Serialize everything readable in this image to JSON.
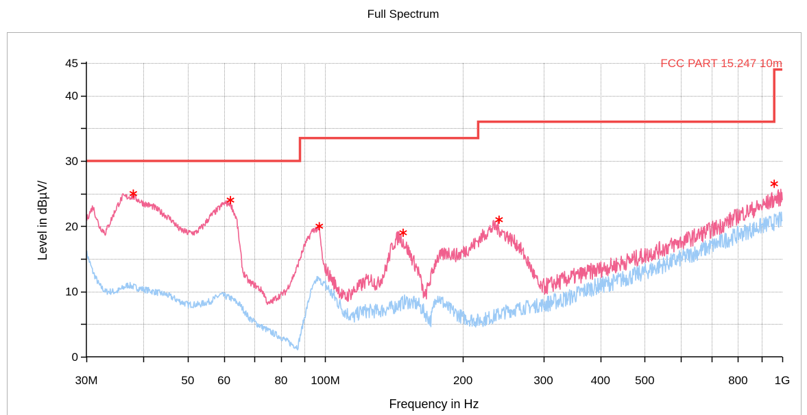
{
  "chart_data": {
    "type": "line",
    "title": "Full Spectrum",
    "xlabel": "Frequency in Hz",
    "ylabel": "Level in dBµV/",
    "x_scale": "log",
    "xlim": [
      30000000,
      1000000000
    ],
    "ylim": [
      0,
      45
    ],
    "grid": true,
    "x_ticks": [
      {
        "value": 30000000,
        "label": "30M"
      },
      {
        "value": 40000000,
        "label": ""
      },
      {
        "value": 50000000,
        "label": "50"
      },
      {
        "value": 60000000,
        "label": "60"
      },
      {
        "value": 70000000,
        "label": ""
      },
      {
        "value": 80000000,
        "label": "80"
      },
      {
        "value": 90000000,
        "label": ""
      },
      {
        "value": 100000000,
        "label": "100M"
      },
      {
        "value": 200000000,
        "label": "200"
      },
      {
        "value": 300000000,
        "label": "300"
      },
      {
        "value": 400000000,
        "label": "400"
      },
      {
        "value": 500000000,
        "label": "500"
      },
      {
        "value": 600000000,
        "label": ""
      },
      {
        "value": 700000000,
        "label": ""
      },
      {
        "value": 800000000,
        "label": "800"
      },
      {
        "value": 900000000,
        "label": ""
      },
      {
        "value": 1000000000,
        "label": "1G"
      }
    ],
    "y_ticks": [
      {
        "value": 0,
        "label": "0"
      },
      {
        "value": 5,
        "label": ""
      },
      {
        "value": 10,
        "label": "10"
      },
      {
        "value": 15,
        "label": ""
      },
      {
        "value": 20,
        "label": "20"
      },
      {
        "value": 25,
        "label": ""
      },
      {
        "value": 30,
        "label": "30"
      },
      {
        "value": 35,
        "label": ""
      },
      {
        "value": 40,
        "label": "40"
      },
      {
        "value": 45,
        "label": "45"
      }
    ],
    "limit_line": {
      "label": "FCC PART 15.247 10m",
      "color": "#f04848",
      "points": [
        [
          30000000,
          30
        ],
        [
          88000000,
          30
        ],
        [
          88000000,
          33.5
        ],
        [
          216000000,
          33.5
        ],
        [
          216000000,
          36
        ],
        [
          960000000,
          36
        ],
        [
          960000000,
          44
        ],
        [
          1000000000,
          44
        ]
      ]
    },
    "series": [
      {
        "color": "#f0608e",
        "points": [
          [
            30000000,
            21
          ],
          [
            31000000,
            23
          ],
          [
            32000000,
            20
          ],
          [
            33000000,
            19
          ],
          [
            34000000,
            21
          ],
          [
            35000000,
            23
          ],
          [
            36000000,
            24.5
          ],
          [
            38000000,
            24.5
          ],
          [
            40000000,
            23.5
          ],
          [
            42000000,
            23
          ],
          [
            44000000,
            22
          ],
          [
            46000000,
            21
          ],
          [
            48000000,
            19.5
          ],
          [
            50000000,
            19
          ],
          [
            52000000,
            19
          ],
          [
            54000000,
            20
          ],
          [
            56000000,
            21.5
          ],
          [
            58000000,
            22.5
          ],
          [
            60000000,
            23.5
          ],
          [
            62000000,
            23.5
          ],
          [
            64000000,
            21
          ],
          [
            66000000,
            13
          ],
          [
            68000000,
            11.5
          ],
          [
            70000000,
            11
          ],
          [
            73000000,
            10
          ],
          [
            75000000,
            8
          ],
          [
            78000000,
            9
          ],
          [
            82000000,
            10
          ],
          [
            86000000,
            13
          ],
          [
            90000000,
            17
          ],
          [
            94000000,
            19.5
          ],
          [
            97000000,
            19.5
          ],
          [
            99000000,
            14
          ],
          [
            103000000,
            12
          ],
          [
            110000000,
            9
          ],
          [
            115000000,
            10
          ],
          [
            120000000,
            11
          ],
          [
            125000000,
            12
          ],
          [
            130000000,
            11
          ],
          [
            135000000,
            13
          ],
          [
            140000000,
            17
          ],
          [
            145000000,
            18.5
          ],
          [
            150000000,
            17
          ],
          [
            155000000,
            15
          ],
          [
            160000000,
            13
          ],
          [
            165000000,
            9
          ],
          [
            170000000,
            12
          ],
          [
            175000000,
            15
          ],
          [
            185000000,
            16
          ],
          [
            195000000,
            15.5
          ],
          [
            210000000,
            17
          ],
          [
            225000000,
            19
          ],
          [
            235000000,
            20
          ],
          [
            250000000,
            18.5
          ],
          [
            265000000,
            17
          ],
          [
            280000000,
            14
          ],
          [
            295000000,
            10.5
          ],
          [
            310000000,
            11
          ],
          [
            340000000,
            12
          ],
          [
            380000000,
            13
          ],
          [
            430000000,
            14
          ],
          [
            500000000,
            15.5
          ],
          [
            570000000,
            17
          ],
          [
            650000000,
            18.5
          ],
          [
            730000000,
            20
          ],
          [
            820000000,
            22
          ],
          [
            900000000,
            23
          ],
          [
            950000000,
            24
          ],
          [
            1000000000,
            24.5
          ]
        ]
      },
      {
        "color": "#9ccaf6",
        "points": [
          [
            30000000,
            16
          ],
          [
            31000000,
            13
          ],
          [
            32000000,
            11
          ],
          [
            33000000,
            10
          ],
          [
            35000000,
            10
          ],
          [
            37000000,
            11
          ],
          [
            39000000,
            10.5
          ],
          [
            42000000,
            10
          ],
          [
            45000000,
            9.5
          ],
          [
            48000000,
            8.5
          ],
          [
            50000000,
            8
          ],
          [
            53000000,
            8
          ],
          [
            56000000,
            8.5
          ],
          [
            59000000,
            9.5
          ],
          [
            62000000,
            9
          ],
          [
            65000000,
            8
          ],
          [
            68000000,
            6
          ],
          [
            71000000,
            5
          ],
          [
            75000000,
            4
          ],
          [
            80000000,
            3
          ],
          [
            84000000,
            2
          ],
          [
            87000000,
            1.5
          ],
          [
            90000000,
            6
          ],
          [
            93000000,
            10
          ],
          [
            96000000,
            12
          ],
          [
            100000000,
            11
          ],
          [
            105000000,
            9
          ],
          [
            110000000,
            7
          ],
          [
            115000000,
            6
          ],
          [
            120000000,
            7
          ],
          [
            130000000,
            7
          ],
          [
            140000000,
            7.5
          ],
          [
            150000000,
            8.5
          ],
          [
            160000000,
            8
          ],
          [
            170000000,
            5.5
          ],
          [
            175000000,
            9.5
          ],
          [
            185000000,
            7.5
          ],
          [
            200000000,
            6
          ],
          [
            215000000,
            5.5
          ],
          [
            230000000,
            6
          ],
          [
            250000000,
            7
          ],
          [
            270000000,
            7.5
          ],
          [
            300000000,
            8
          ],
          [
            340000000,
            9
          ],
          [
            380000000,
            10.5
          ],
          [
            430000000,
            11.5
          ],
          [
            500000000,
            13
          ],
          [
            570000000,
            14.5
          ],
          [
            650000000,
            16
          ],
          [
            730000000,
            17.5
          ],
          [
            820000000,
            19
          ],
          [
            900000000,
            20
          ],
          [
            1000000000,
            21
          ]
        ]
      }
    ],
    "markers": [
      {
        "x": 38000000,
        "y": 25
      },
      {
        "x": 62000000,
        "y": 24
      },
      {
        "x": 97000000,
        "y": 20
      },
      {
        "x": 148000000,
        "y": 19
      },
      {
        "x": 240000000,
        "y": 21
      },
      {
        "x": 960000000,
        "y": 26.5
      }
    ],
    "marker_color": "#ff0000"
  }
}
